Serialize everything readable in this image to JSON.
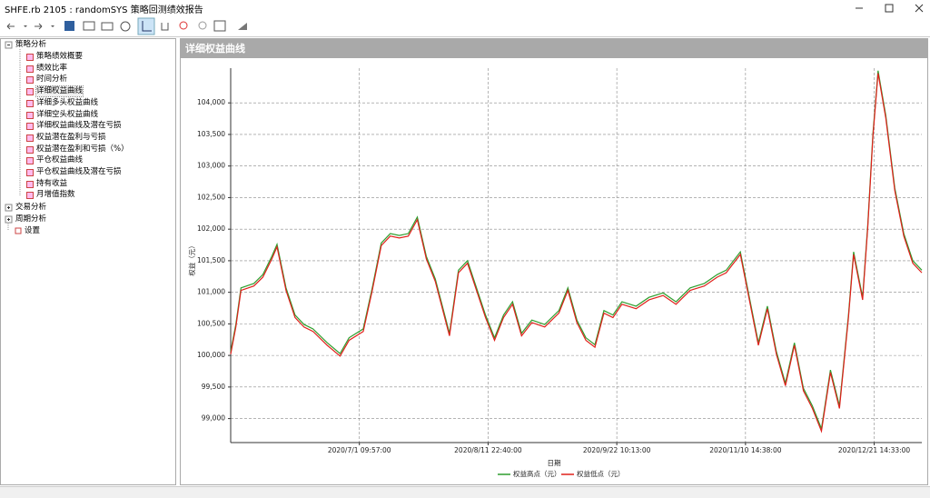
{
  "window": {
    "title": "SHFE.rb 2105 : randomSYS 策略回测绩效报告"
  },
  "tree": [
    {
      "label": "策略分析",
      "children": [
        "策略绩效概要",
        "绩效比率",
        "时间分析",
        "详细权益曲线",
        "详细多头权益曲线",
        "详细空头权益曲线",
        "详细权益曲线及潜在亏损",
        "权益潜在盈利与亏损",
        "权益潜在盈利和亏损（%）",
        "平仓权益曲线",
        "平仓权益曲线及潜在亏损",
        "持有收益",
        "月增值指数"
      ]
    },
    {
      "label": "交易分析"
    },
    {
      "label": "周期分析"
    },
    {
      "label": "设置"
    }
  ],
  "chart_data": {
    "type": "line",
    "title": "详细权益曲线",
    "xlabel": "日期",
    "ylabel": "权益（元）",
    "xlim": [
      0,
      537
    ],
    "ylim": [
      98620,
      104550
    ],
    "xticks": [
      {
        "value": 100,
        "label": "2020/7/1 09:57:00"
      },
      {
        "value": 200,
        "label": "2020/8/11 22:40:00"
      },
      {
        "value": 300,
        "label": "2020/9/22 10:13:00"
      },
      {
        "value": 400,
        "label": "2020/11/10 14:38:00"
      },
      {
        "value": 500,
        "label": "2020/12/21 14:33:00"
      }
    ],
    "yticks": [
      {
        "value": 99000,
        "label": "99,000"
      },
      {
        "value": 99500,
        "label": "99,500"
      },
      {
        "value": 100000,
        "label": "100,000"
      },
      {
        "value": 100500,
        "label": "100,500"
      },
      {
        "value": 101000,
        "label": "101,000"
      },
      {
        "value": 101500,
        "label": "101,500"
      },
      {
        "value": 102000,
        "label": "102,000"
      },
      {
        "value": 102500,
        "label": "102,500"
      },
      {
        "value": 103000,
        "label": "103,000"
      },
      {
        "value": 103500,
        "label": "103,500"
      },
      {
        "value": 104000,
        "label": "104,000"
      }
    ],
    "grid": true,
    "x": [
      0,
      4,
      8,
      18,
      25,
      32,
      36,
      43,
      50,
      57,
      64,
      75,
      85,
      92,
      103,
      110,
      117,
      124,
      131,
      138,
      145,
      152,
      159,
      170,
      177,
      184,
      191,
      198,
      205,
      212,
      219,
      226,
      234,
      244,
      255,
      262,
      269,
      276,
      283,
      290,
      297,
      304,
      315,
      325,
      336,
      346,
      357,
      368,
      378,
      385,
      396,
      403,
      410,
      417,
      424,
      431,
      438,
      445,
      452,
      459,
      466,
      473,
      480,
      484,
      491,
      495,
      499,
      503,
      509,
      516,
      523,
      530,
      537
    ],
    "series": [
      {
        "name": "权益高点（元）",
        "color": "#2e9e2e",
        "values": [
          100060,
          100490,
          101070,
          101140,
          101280,
          101570,
          101760,
          101070,
          100640,
          100490,
          100420,
          100200,
          100030,
          100280,
          100420,
          101070,
          101780,
          101930,
          101900,
          101930,
          102190,
          101570,
          101210,
          100350,
          101350,
          101500,
          101070,
          100640,
          100280,
          100640,
          100850,
          100350,
          100560,
          100490,
          100710,
          101070,
          100560,
          100280,
          100170,
          100710,
          100640,
          100850,
          100780,
          100920,
          100990,
          100850,
          101070,
          101140,
          101280,
          101350,
          101640,
          100920,
          100200,
          100780,
          100060,
          99560,
          100200,
          99480,
          99200,
          98840,
          99770,
          99200,
          100640,
          101640,
          100920,
          102070,
          103510,
          104510,
          103800,
          102650,
          101930,
          101500,
          101350
        ]
      },
      {
        "name": "权益低点（元）",
        "color": "#e0201b",
        "values": [
          100020,
          100450,
          101030,
          101100,
          101240,
          101530,
          101720,
          101030,
          100600,
          100450,
          100380,
          100160,
          99990,
          100240,
          100380,
          101030,
          101740,
          101890,
          101860,
          101890,
          102150,
          101530,
          101170,
          100310,
          101310,
          101460,
          101030,
          100600,
          100240,
          100600,
          100810,
          100310,
          100520,
          100450,
          100670,
          101030,
          100520,
          100240,
          100130,
          100670,
          100600,
          100810,
          100740,
          100880,
          100950,
          100810,
          101030,
          101100,
          101240,
          101310,
          101600,
          100880,
          100160,
          100740,
          100020,
          99520,
          100160,
          99440,
          99160,
          98800,
          99730,
          99160,
          100600,
          101600,
          100880,
          102030,
          103470,
          104470,
          103760,
          102610,
          101890,
          101460,
          101310
        ]
      }
    ]
  }
}
